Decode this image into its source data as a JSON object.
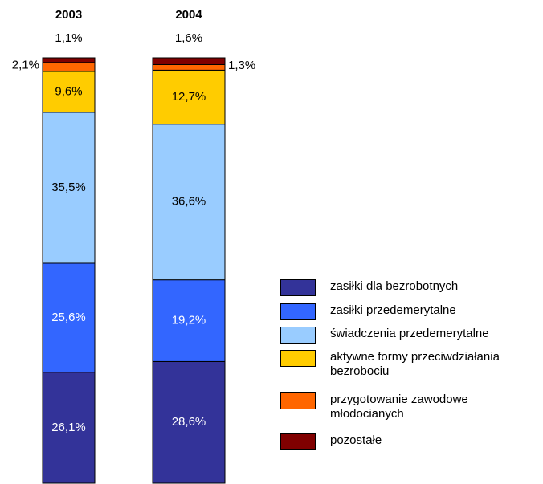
{
  "chart_data": {
    "type": "stacked_bar",
    "categories": [
      "2003",
      "2004"
    ],
    "series": [
      {
        "name": "zasiłki dla bezrobotnych",
        "color": "#333399",
        "values": [
          26.1,
          28.6
        ],
        "value_labels": [
          "26,1%",
          "28,6%"
        ]
      },
      {
        "name": "zasiłki przedemerytalne",
        "color": "#3366ff",
        "values": [
          25.6,
          19.2
        ],
        "value_labels": [
          "25,6%",
          "19,2%"
        ]
      },
      {
        "name": "świadczenia przedemerytalne",
        "color": "#99ccff",
        "values": [
          35.5,
          36.6
        ],
        "value_labels": [
          "35,5%",
          "36,6%"
        ]
      },
      {
        "name": "aktywne formy przeciwdziałania bezrobociu",
        "color": "#ffcc00",
        "values": [
          9.6,
          12.7
        ],
        "value_labels": [
          "9,6%",
          "12,7%"
        ]
      },
      {
        "name": "przygotowanie zawodowe młodocianych",
        "color": "#ff6600",
        "values": [
          2.1,
          1.3
        ],
        "value_labels": [
          "2,1%",
          "1,3%"
        ]
      },
      {
        "name": "pozostałe",
        "color": "#800000",
        "values": [
          1.1,
          1.6
        ],
        "value_labels": [
          "1,1%",
          "1,6%"
        ]
      }
    ]
  }
}
